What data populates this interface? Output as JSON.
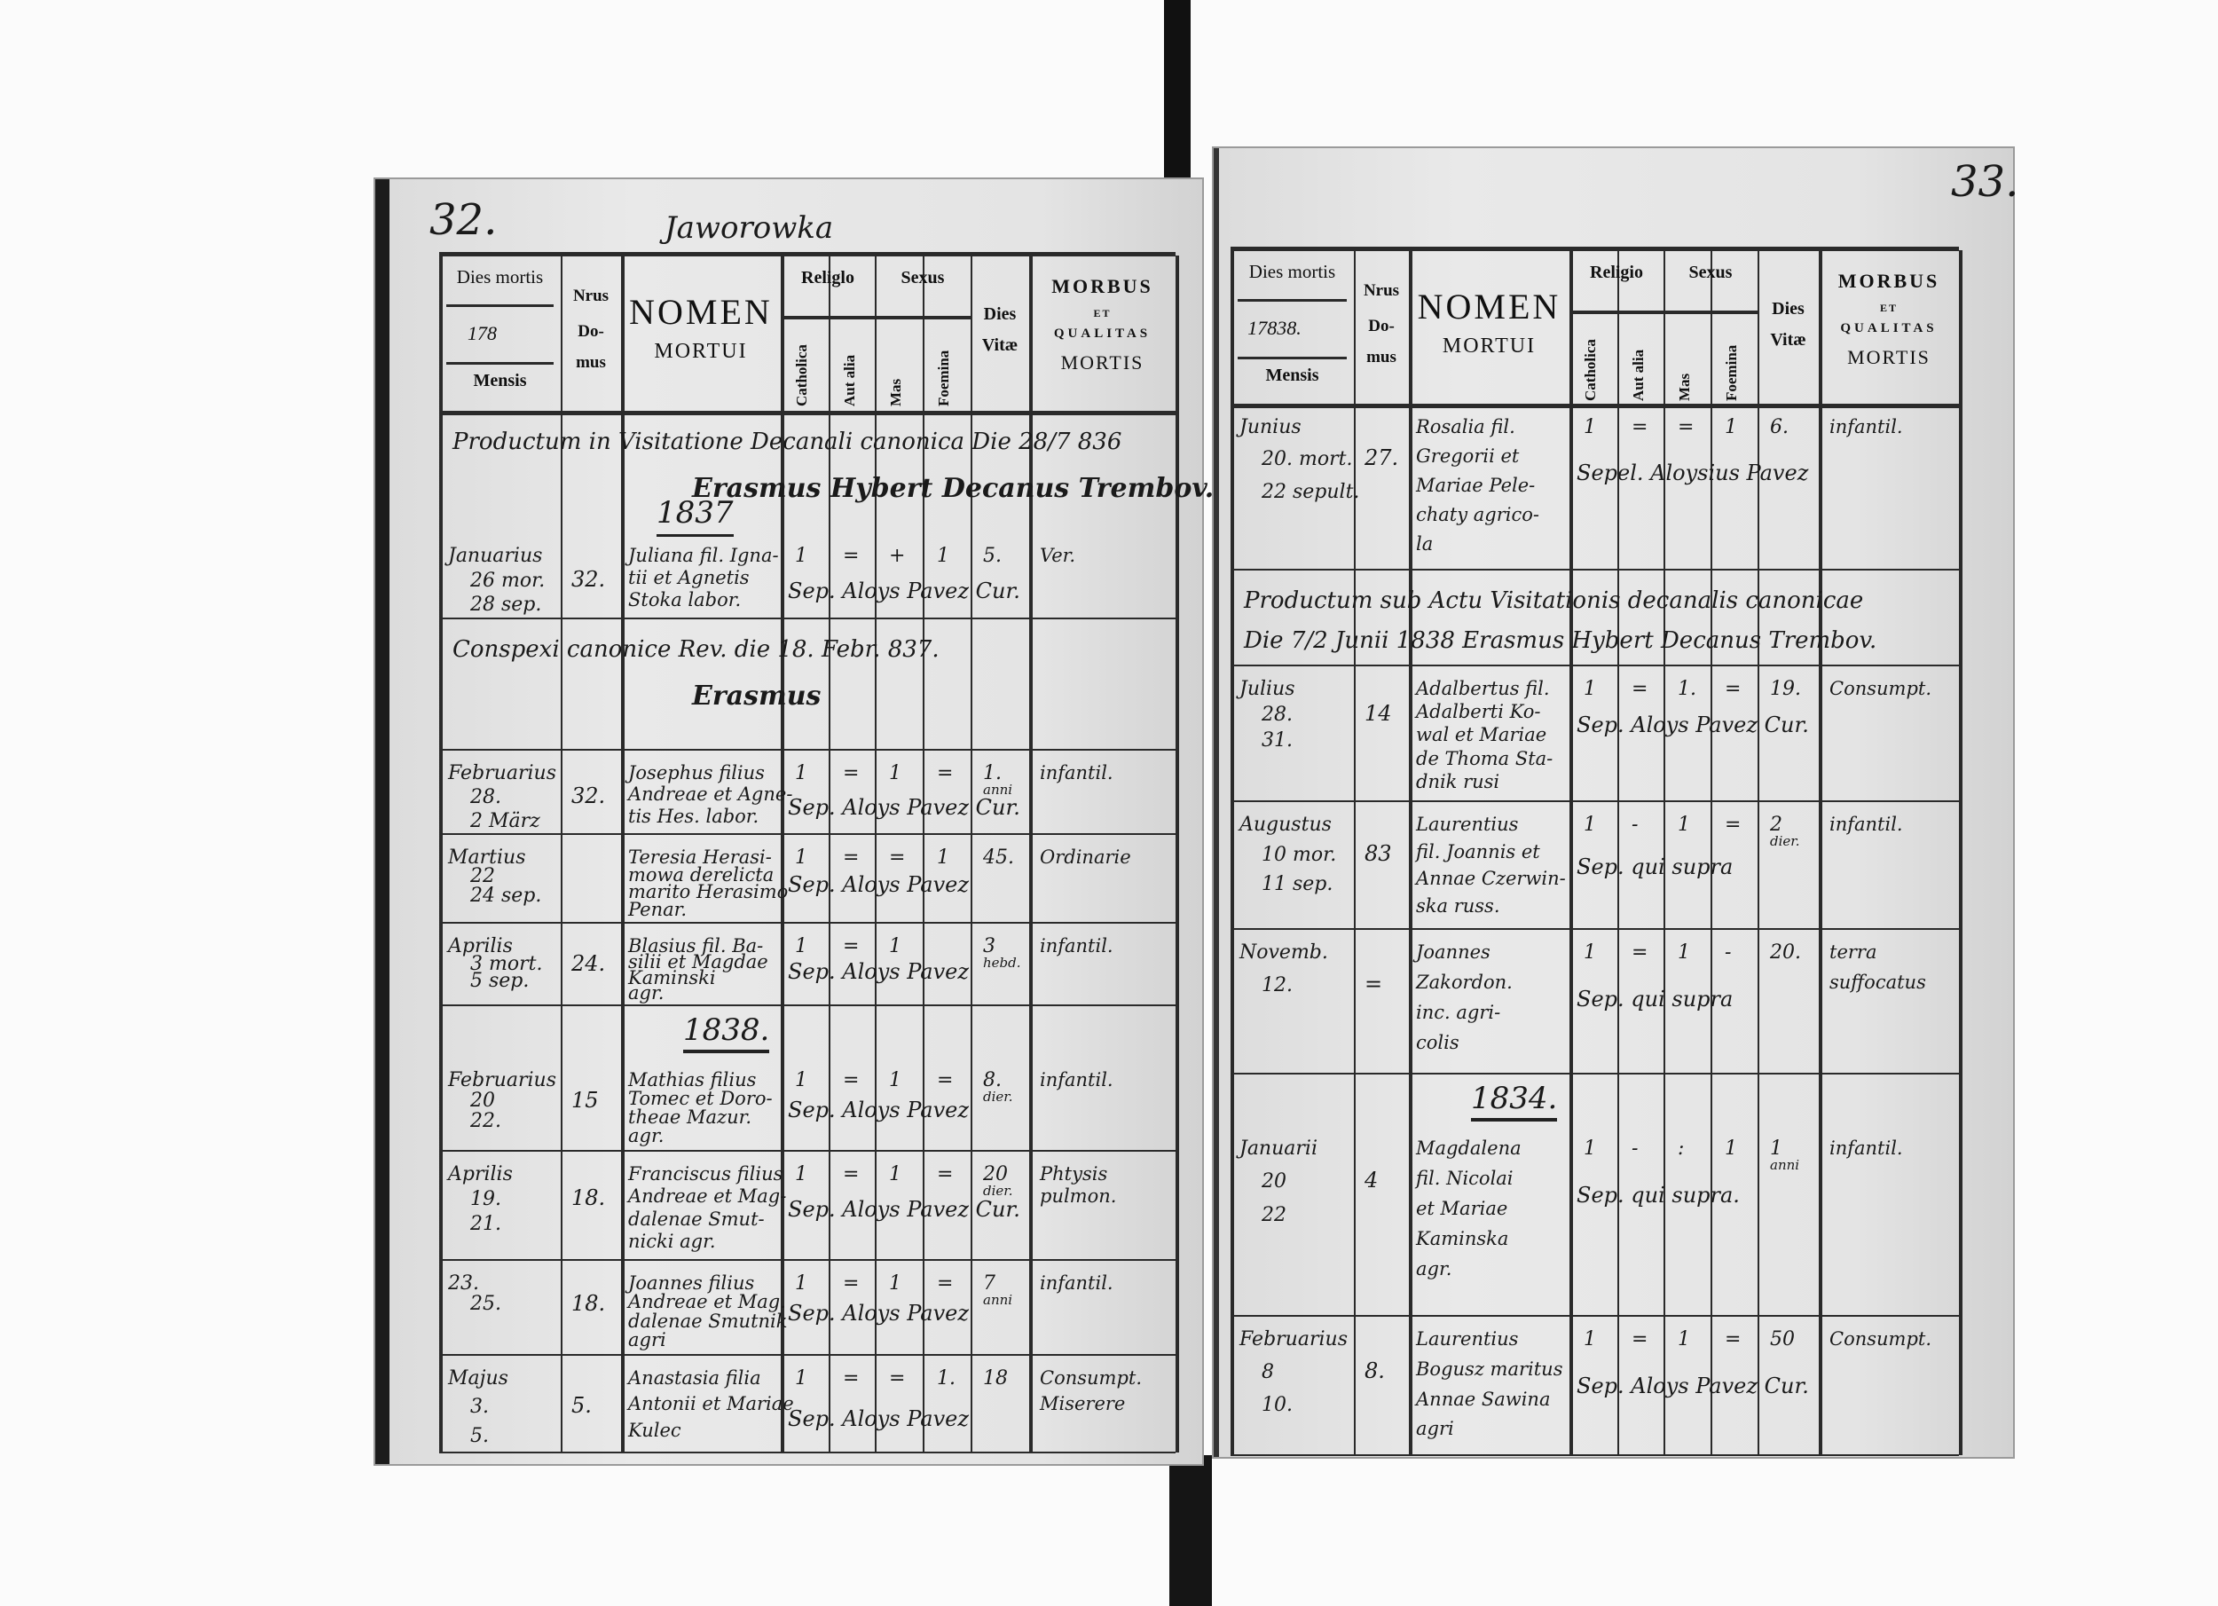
{
  "pages": [
    {
      "page_number": "32.",
      "place": "Jaworowka",
      "header": {
        "dies_mortis": "Dies mortis",
        "year": "178",
        "mensis": "Mensis",
        "nrus": "Nrus",
        "do": "Do-",
        "mus": "mus",
        "nomen": "NOMEN",
        "mortui": "MORTUI",
        "religio": "Religlo",
        "sexus": "Sexus",
        "catholica": "Catholica",
        "aut_alia": "Aut alia",
        "mas": "Mas",
        "foemina": "Foemina",
        "dies": "Dies",
        "vitae": "Vitæ",
        "morbus": "MORBUS",
        "et": "ET",
        "qualitas": "QUALITAS",
        "mortis": "MORTIS"
      },
      "rows": [
        {
          "type": "note",
          "lines": [
            "Productum in Visitatione Decanali canonica Die 28/7 836"
          ],
          "signature": "Erasmus Hybert Decanus Trembov.",
          "year": "1837"
        },
        {
          "type": "entry",
          "date": [
            "Januarius",
            "26 mor.",
            "28 sep."
          ],
          "domus": "32.",
          "name": [
            "Juliana fil. Igna-",
            "tii et Agnetis",
            "Stoka labor."
          ],
          "catholica": "1",
          "aut_alia": "=",
          "mas": "+",
          "foemina": "1",
          "dies_vitae": [
            "5."
          ],
          "morbus": [
            "Ver."
          ],
          "sepultus": "Sep. Aloys Pavez Cur."
        },
        {
          "type": "note",
          "lines": [
            "Conspexi canonice Rev. die 18. Febr. 837."
          ],
          "signature": "Erasmus"
        },
        {
          "type": "entry",
          "date": [
            "Februarius",
            "28.",
            "2 März"
          ],
          "domus": "32.",
          "name": [
            "Josephus filius",
            "Andreae et Agne-",
            "tis Hes. labor."
          ],
          "catholica": "1",
          "aut_alia": "=",
          "mas": "1",
          "foemina": "=",
          "dies_vitae": [
            "1.",
            "anni"
          ],
          "morbus": [
            "infantil."
          ],
          "sepultus": "Sep. Aloys Pavez Cur."
        },
        {
          "type": "entry",
          "date": [
            "Martius",
            "22",
            "24 sep."
          ],
          "domus": "",
          "name": [
            "Teresia Herasi-",
            "mowa derelicta",
            "marito Herasimo",
            "Penar."
          ],
          "catholica": "1",
          "aut_alia": "=",
          "mas": "=",
          "foemina": "1",
          "dies_vitae": [
            "45."
          ],
          "morbus": [
            "Ordinarie"
          ],
          "sepultus": "Sep. Aloys Pavez"
        },
        {
          "type": "entry",
          "date": [
            "Aprilis",
            "3 mort.",
            "5 sep."
          ],
          "domus": "24.",
          "name": [
            "Blasius fil. Ba-",
            "silii et Magdae",
            "Kaminski",
            "agr."
          ],
          "catholica": "1",
          "aut_alia": "=",
          "mas": "1",
          "foemina": "",
          "dies_vitae": [
            "3",
            "hebd."
          ],
          "morbus": [
            "infantil."
          ],
          "sepultus": "Sep. Aloys Pavez"
        },
        {
          "type": "entry",
          "year": "1838.",
          "date": [
            "Februarius",
            "20",
            "22."
          ],
          "domus": "15",
          "name": [
            "Mathias filius",
            "Tomec et Doro-",
            "theae Mazur.",
            "agr."
          ],
          "catholica": "1",
          "aut_alia": "=",
          "mas": "1",
          "foemina": "=",
          "dies_vitae": [
            "8.",
            "dier."
          ],
          "morbus": [
            "infantil."
          ],
          "sepultus": "Sep. Aloys Pavez"
        },
        {
          "type": "entry",
          "date": [
            "Aprilis",
            "19.",
            "21."
          ],
          "domus": "18.",
          "name": [
            "Franciscus filius",
            "Andreae et Mag-",
            "dalenae Smut-",
            "nicki agr."
          ],
          "catholica": "1",
          "aut_alia": "=",
          "mas": "1",
          "foemina": "=",
          "dies_vitae": [
            "20",
            "dier."
          ],
          "morbus": [
            "Phtysis",
            "pulmon."
          ],
          "sepultus": "Sep. Aloys Pavez Cur."
        },
        {
          "type": "entry",
          "date": [
            "23.",
            "25."
          ],
          "domus": "18.",
          "name": [
            "Joannes filius",
            "Andreae et Mag.",
            "dalenae Smutnik",
            "agri"
          ],
          "catholica": "1",
          "aut_alia": "=",
          "mas": "1",
          "foemina": "=",
          "dies_vitae": [
            "7",
            "anni"
          ],
          "morbus": [
            "infantil."
          ],
          "sepultus": "Sep. Aloys Pavez"
        },
        {
          "type": "entry",
          "date": [
            "Majus",
            "3.",
            "5."
          ],
          "domus": "5.",
          "name": [
            "Anastasia filia",
            "Antonii et Mariae",
            "Kulec"
          ],
          "catholica": "1",
          "aut_alia": "=",
          "mas": "=",
          "foemina": "1.",
          "dies_vitae": [
            "18"
          ],
          "morbus": [
            "Consumpt.",
            "Miserere"
          ],
          "sepultus": "Sep. Aloys Pavez"
        }
      ]
    },
    {
      "page_number": "33.",
      "place": "",
      "header": {
        "dies_mortis": "Dies mortis",
        "year": "17838.",
        "mensis": "Mensis",
        "nrus": "Nrus",
        "do": "Do-",
        "mus": "mus",
        "nomen": "NOMEN",
        "mortui": "MORTUI",
        "religio": "Religio",
        "sexus": "Sexus",
        "catholica": "Catholica",
        "aut_alia": "Aut alia",
        "mas": "Mas",
        "foemina": "Foemina",
        "dies": "Dies",
        "vitae": "Vitæ",
        "morbus": "MORBUS",
        "et": "ET",
        "qualitas": "QUALITAS",
        "mortis": "MORTIS"
      },
      "rows": [
        {
          "type": "entry",
          "date": [
            "Junius",
            "20. mort.",
            "22 sepult."
          ],
          "domus": "27.",
          "name": [
            "Rosalia fil.",
            "Gregorii et",
            "Mariae Pele-",
            "chaty agrico-",
            "la"
          ],
          "catholica": "1",
          "aut_alia": "=",
          "mas": "=",
          "foemina": "1",
          "dies_vitae": [
            "6."
          ],
          "morbus": [
            "infantil."
          ],
          "sepultus": "Sepel. Aloysius Pavez"
        },
        {
          "type": "note",
          "lines": [
            "Productum sub Actu Visitationis decanalis canonicae",
            "Die 7/2 Junii 1838 Erasmus Hybert Decanus Trembov."
          ]
        },
        {
          "type": "entry",
          "date": [
            "Julius",
            "28.",
            "31."
          ],
          "domus": "14",
          "name": [
            "Adalbertus fil.",
            "Adalberti Ko-",
            "wal et Mariae",
            "de Thoma Sta-",
            "dnik rusi"
          ],
          "catholica": "1",
          "aut_alia": "=",
          "mas": "1.",
          "foemina": "=",
          "dies_vitae": [
            "19."
          ],
          "morbus": [
            "Consumpt."
          ],
          "sepultus": "Sep. Aloys Pavez Cur."
        },
        {
          "type": "entry",
          "date": [
            "Augustus",
            "10 mor.",
            "11 sep."
          ],
          "domus": "83",
          "name": [
            "Laurentius",
            "fil. Joannis et",
            "Annae Czerwin-",
            "ska russ."
          ],
          "catholica": "1",
          "aut_alia": "-",
          "mas": "1",
          "foemina": "=",
          "dies_vitae": [
            "2",
            "dier."
          ],
          "morbus": [
            "infantil."
          ],
          "sepultus": "Sep. qui supra"
        },
        {
          "type": "entry",
          "date": [
            "Novemb.",
            "12."
          ],
          "domus": "=",
          "name": [
            "Joannes",
            "Zakordon.",
            "inc. agri-",
            "colis"
          ],
          "catholica": "1",
          "aut_alia": "=",
          "mas": "1",
          "foemina": "-",
          "dies_vitae": [
            "20."
          ],
          "morbus": [
            "terra",
            "suffocatus"
          ],
          "sepultus": "Sep. qui supra"
        },
        {
          "type": "entry",
          "year": "1834.",
          "date": [
            "Januarii",
            "20",
            "22"
          ],
          "domus": "4",
          "name": [
            "Magdalena",
            "fil. Nicolai",
            "et Mariae",
            "Kaminska",
            "agr."
          ],
          "catholica": "1",
          "aut_alia": "-",
          "mas": ":",
          "foemina": "1",
          "dies_vitae": [
            "1",
            "anni"
          ],
          "morbus": [
            "infantil."
          ],
          "sepultus": "Sep. qui supra."
        },
        {
          "type": "entry",
          "date": [
            "Februarius",
            "8",
            "10."
          ],
          "domus": "8.",
          "name": [
            "Laurentius",
            "Bogusz maritus",
            "Annae Sawina",
            "agri"
          ],
          "catholica": "1",
          "aut_alia": "=",
          "mas": "1",
          "foemina": "=",
          "dies_vitae": [
            "50"
          ],
          "morbus": [
            "Consumpt."
          ],
          "sepultus": "Sep. Aloys Pavez Cur."
        }
      ]
    }
  ]
}
